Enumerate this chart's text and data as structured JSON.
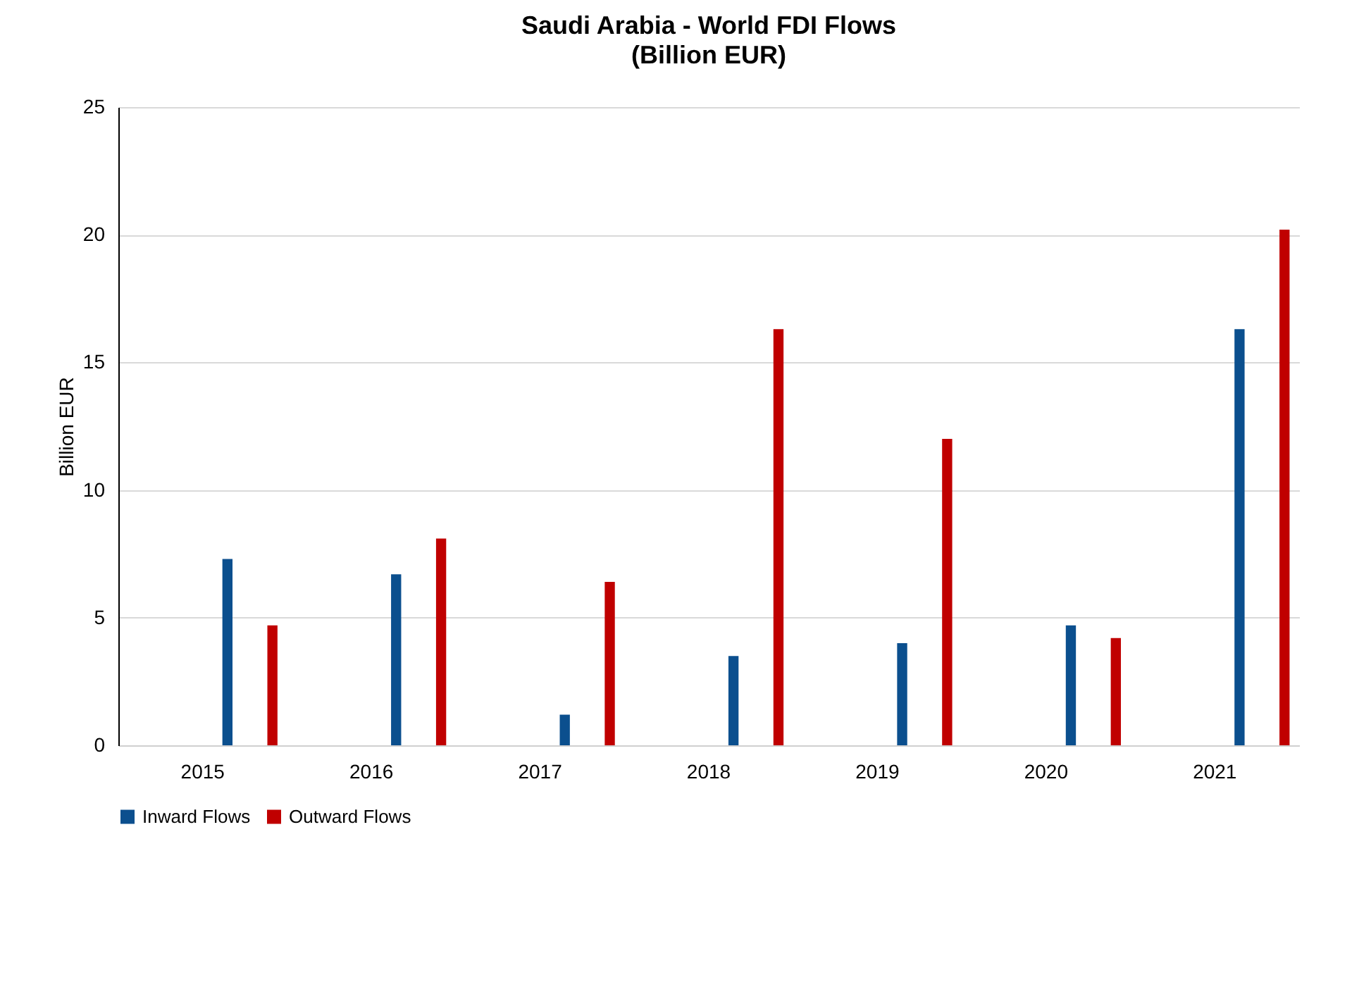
{
  "chart_data": {
    "type": "bar",
    "title": "Saudi Arabia - World FDI Flows",
    "subtitle": "(Billion EUR)",
    "ylabel": "Billion EUR",
    "categories": [
      "2015",
      "2016",
      "2017",
      "2018",
      "2019",
      "2020",
      "2021"
    ],
    "series": [
      {
        "name": "Inward Flows",
        "color": "#0b4f8e",
        "values": [
          7.3,
          6.7,
          1.2,
          3.5,
          4.0,
          4.7,
          16.3
        ]
      },
      {
        "name": "Outward Flows",
        "color": "#c00000",
        "values": [
          4.7,
          8.1,
          6.4,
          16.3,
          12.0,
          4.2,
          20.2
        ]
      }
    ],
    "ylim": [
      0,
      25
    ],
    "yticks": [
      0,
      5,
      10,
      15,
      20,
      25
    ],
    "grid": "y",
    "legend": "bottom"
  }
}
